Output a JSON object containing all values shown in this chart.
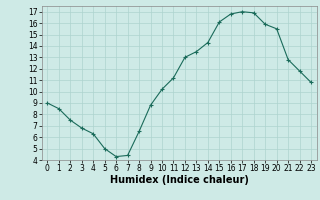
{
  "x": [
    0,
    1,
    2,
    3,
    4,
    5,
    6,
    7,
    8,
    9,
    10,
    11,
    12,
    13,
    14,
    15,
    16,
    17,
    18,
    19,
    20,
    21,
    22,
    23
  ],
  "y": [
    9.0,
    8.5,
    7.5,
    6.8,
    6.3,
    5.0,
    4.3,
    4.4,
    6.5,
    8.8,
    10.2,
    11.2,
    13.0,
    13.5,
    14.3,
    16.1,
    16.8,
    17.0,
    16.9,
    15.9,
    15.5,
    12.8,
    11.8,
    10.8
  ],
  "line_color": "#1a6b5a",
  "marker": "+",
  "marker_size": 3,
  "marker_color": "#1a6b5a",
  "bg_color": "#ceeae6",
  "grid_color": "#aed4cf",
  "xlabel": "Humidex (Indice chaleur)",
  "xlim": [
    -0.5,
    23.5
  ],
  "ylim": [
    4,
    17.5
  ],
  "yticks": [
    4,
    5,
    6,
    7,
    8,
    9,
    10,
    11,
    12,
    13,
    14,
    15,
    16,
    17
  ],
  "xticks": [
    0,
    1,
    2,
    3,
    4,
    5,
    6,
    7,
    8,
    9,
    10,
    11,
    12,
    13,
    14,
    15,
    16,
    17,
    18,
    19,
    20,
    21,
    22,
    23
  ],
  "tick_fontsize": 5.5,
  "xlabel_fontsize": 7,
  "linewidth": 0.8
}
